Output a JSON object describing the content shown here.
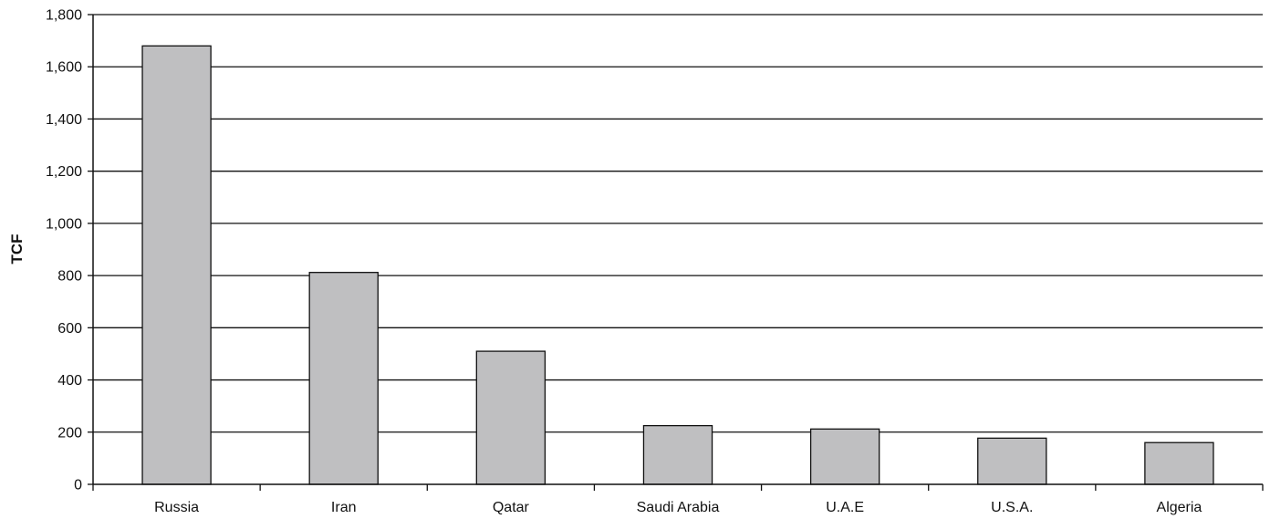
{
  "chart_data": {
    "type": "bar",
    "title": "",
    "xlabel": "",
    "ylabel": "TCF",
    "categories": [
      "Russia",
      "Iran",
      "Qatar",
      "Saudi Arabia",
      "U.A.E",
      "U.S.A.",
      "Algeria"
    ],
    "values": [
      1680,
      812,
      510,
      225,
      212,
      177,
      160
    ],
    "ylim": [
      0,
      1800
    ],
    "yticks": [
      0,
      200,
      400,
      600,
      800,
      1000,
      1200,
      1400,
      1600,
      1800
    ],
    "ytick_labels": [
      "0",
      "200",
      "400",
      "600",
      "800",
      "1,000",
      "1,200",
      "1,400",
      "1,600",
      "1,800"
    ],
    "grid": true,
    "legend": "none",
    "bar_color": "#bfbfc1",
    "bar_edge_color": "#111111",
    "grid_color": "#111111"
  }
}
